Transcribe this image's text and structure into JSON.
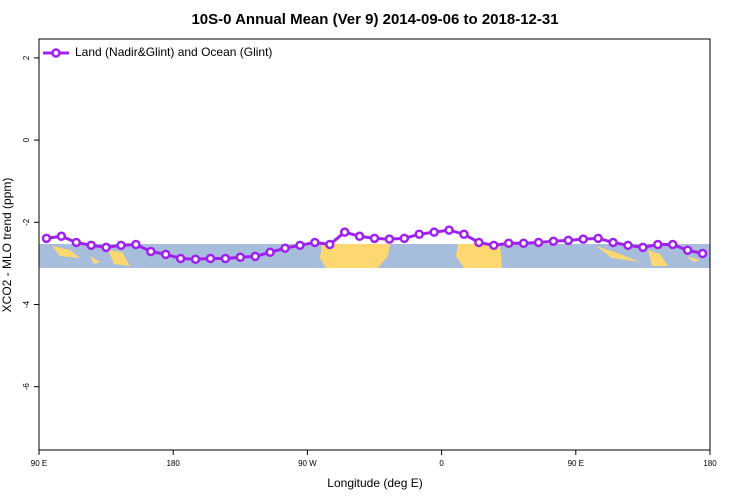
{
  "chart_data": {
    "type": "line",
    "title": "10S-0 Annual Mean (Ver 9)   2014-09-06 to 2018-12-31",
    "x_label": "Longitude (deg E)",
    "y_label": "XCO2 - MLO trend (ppm)",
    "x": [
      95,
      105,
      115,
      125,
      135,
      145,
      155,
      165,
      175,
      185,
      195,
      205,
      215,
      225,
      235,
      245,
      255,
      265,
      275,
      285,
      295,
      305,
      315,
      325,
      335,
      345,
      355,
      365,
      375,
      385,
      395,
      405,
      415,
      425,
      435,
      445,
      455,
      465,
      475,
      485,
      495,
      505,
      515,
      525,
      535
    ],
    "series": [
      {
        "name": "Land (Nadir&Glint) and Ocean (Glint)",
        "color": "#a020f0",
        "values": [
          -2.39,
          -2.34,
          -2.49,
          -2.56,
          -2.61,
          -2.56,
          -2.54,
          -2.71,
          -2.78,
          -2.88,
          -2.9,
          -2.88,
          -2.88,
          -2.85,
          -2.83,
          -2.73,
          -2.63,
          -2.56,
          -2.49,
          -2.54,
          -2.24,
          -2.34,
          -2.39,
          -2.41,
          -2.39,
          -2.29,
          -2.24,
          -2.19,
          -2.29,
          -2.49,
          -2.56,
          -2.51,
          -2.51,
          -2.49,
          -2.46,
          -2.44,
          -2.41,
          -2.39,
          -2.49,
          -2.56,
          -2.61,
          -2.54,
          -2.54,
          -2.68,
          -2.76
        ]
      }
    ],
    "xlim": [
      90,
      540
    ],
    "xticks": [
      {
        "value": 90,
        "label": "90 E"
      },
      180,
      {
        "value": 270,
        "label": "90 W"
      },
      {
        "value": 360,
        "label": "0"
      },
      {
        "value": 450,
        "label": "90 E"
      },
      {
        "value": 540,
        "label": "180"
      }
    ],
    "ylim": [
      -7.54,
      2.46
    ],
    "yticks": [
      2,
      0,
      -2,
      -4,
      -6
    ],
    "legend": "upper left"
  }
}
